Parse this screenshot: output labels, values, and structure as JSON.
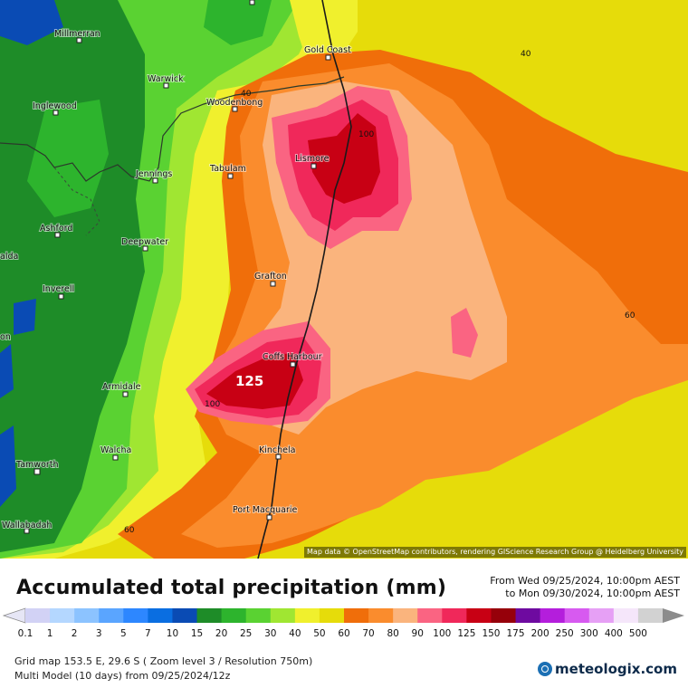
{
  "map": {
    "towns": [
      {
        "name": "Millmerran"
      },
      {
        "name": "Warwick"
      },
      {
        "name": "Inglewood"
      },
      {
        "name": "Woodenbong"
      },
      {
        "name": "Gold Coast"
      },
      {
        "name": "Lismore"
      },
      {
        "name": "Tabulam"
      },
      {
        "name": "Jennings"
      },
      {
        "name": "Ashford"
      },
      {
        "name": "Deepwater"
      },
      {
        "name": "Inverell"
      },
      {
        "name": "Grafton"
      },
      {
        "name": "Coffs Harbour"
      },
      {
        "name": "Armidale"
      },
      {
        "name": "Walcha"
      },
      {
        "name": "Kinchela"
      },
      {
        "name": "Tamworth"
      },
      {
        "name": "Port Macquarie"
      },
      {
        "name": "Wallabadah"
      },
      {
        "name": "alda"
      },
      {
        "name": "on"
      }
    ],
    "contour_labels": [
      "40",
      "40",
      "100",
      "60",
      "125",
      "100",
      "60"
    ],
    "attribution": "Map data © OpenStreetMap contributors, rendering GIScience Research Group @ Heidelberg University"
  },
  "title": "Accumulated total precipitation (mm)",
  "dates": {
    "from": "From Wed 09/25/2024, 10:00pm AEST",
    "to": "to Mon 09/30/2024, 10:00pm AEST"
  },
  "legend": {
    "labels": [
      "0.1",
      "1",
      "2",
      "3",
      "5",
      "7",
      "10",
      "15",
      "20",
      "25",
      "30",
      "40",
      "50",
      "60",
      "70",
      "80",
      "90",
      "100",
      "125",
      "150",
      "175",
      "200",
      "250",
      "300",
      "400",
      "500"
    ],
    "colors": [
      "#d2d2f5",
      "#b4d7ff",
      "#8cc3ff",
      "#5aa5ff",
      "#2d87ff",
      "#0a6ee1",
      "#0a4bb4",
      "#1e8c28",
      "#2db42d",
      "#5ad232",
      "#a0e632",
      "#f0f02d",
      "#e6dc0a",
      "#f06e0a",
      "#fa8c2d",
      "#fab47d",
      "#fa6482",
      "#f0285a",
      "#c80014",
      "#96000a",
      "#6e0aa0",
      "#b41edc",
      "#d75af0",
      "#e6a0f5",
      "#f5e6fa",
      "#d2d2d2"
    ]
  },
  "footer": {
    "line1": "Grid map 153.5 E, 29.6 S ( Zoom level 3 / Resolution 750m)",
    "line2": "Multi Model (10 days) from  09/25/2024/12z"
  },
  "brand": "meteologix.com"
}
